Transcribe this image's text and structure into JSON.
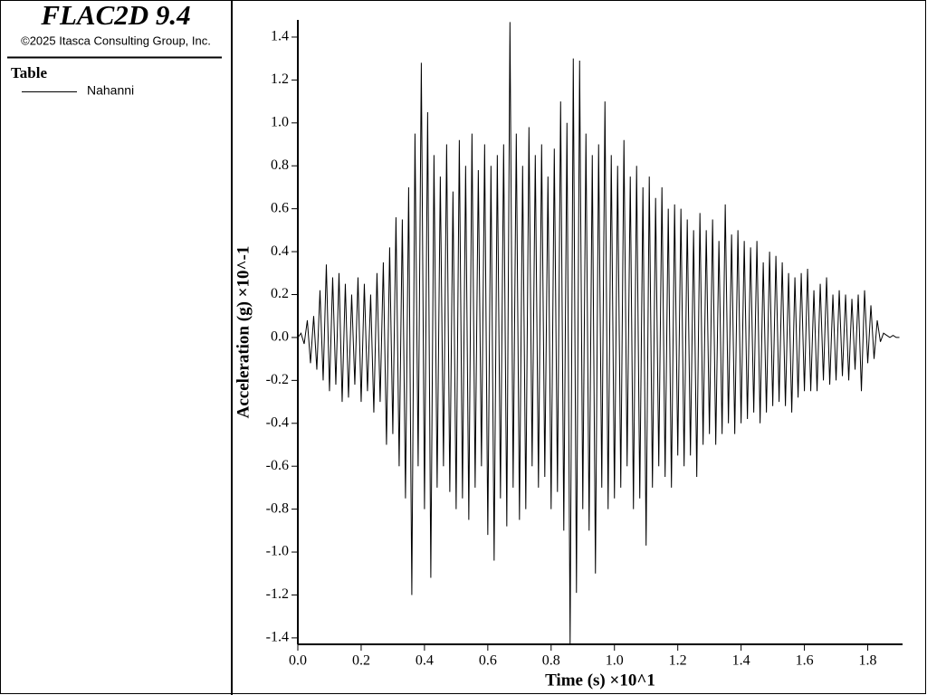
{
  "chart_data": {
    "type": "line",
    "title": "FLAC2D 9.4",
    "subtitle": "©2025 Itasca Consulting Group, Inc.",
    "legend_title": "Table",
    "x_label": "Time (s) ×10^1",
    "y_label": "Acceleration (g) ×10^-1",
    "xlim": [
      0,
      1.91
    ],
    "ylim": [
      -1.43,
      1.48
    ],
    "xticks": [
      {
        "value": 0,
        "label": "0.0"
      },
      0.2,
      0.4,
      0.6,
      0.8,
      {
        "value": 1,
        "label": "1.0"
      },
      1.2,
      1.4,
      1.6,
      1.8
    ],
    "yticks": [
      -1.4,
      -1.2,
      {
        "value": -1,
        "label": "-1.0"
      },
      -0.8,
      -0.6,
      -0.4,
      -0.2,
      {
        "value": 0,
        "label": "0.0"
      },
      0.2,
      0.4,
      0.6,
      0.8,
      {
        "value": 1,
        "label": "1.0"
      },
      1.2,
      1.4
    ],
    "x": [
      0,
      0.01,
      0.02,
      0.03,
      0.04,
      0.05,
      0.06,
      0.07,
      0.08,
      0.09,
      0.1,
      0.11,
      0.12,
      0.13,
      0.14,
      0.15,
      0.16,
      0.17,
      0.18,
      0.19,
      0.2,
      0.21,
      0.22,
      0.23,
      0.24,
      0.25,
      0.26,
      0.27,
      0.28,
      0.29,
      0.3,
      0.31,
      0.32,
      0.33,
      0.34,
      0.35,
      0.36,
      0.37,
      0.38,
      0.39,
      0.4,
      0.41,
      0.42,
      0.43,
      0.44,
      0.45,
      0.46,
      0.47,
      0.48,
      0.49,
      0.5,
      0.51,
      0.52,
      0.53,
      0.54,
      0.55,
      0.56,
      0.57,
      0.58,
      0.59,
      0.6,
      0.61,
      0.62,
      0.63,
      0.64,
      0.65,
      0.66,
      0.67,
      0.68,
      0.69,
      0.7,
      0.71,
      0.72,
      0.73,
      0.74,
      0.75,
      0.76,
      0.77,
      0.78,
      0.79,
      0.8,
      0.81,
      0.82,
      0.83,
      0.84,
      0.85,
      0.86,
      0.87,
      0.88,
      0.89,
      0.9,
      0.91,
      0.92,
      0.93,
      0.94,
      0.95,
      0.96,
      0.97,
      0.98,
      0.99,
      1,
      1.01,
      1.02,
      1.03,
      1.04,
      1.05,
      1.06,
      1.07,
      1.08,
      1.09,
      1.1,
      1.11,
      1.12,
      1.13,
      1.14,
      1.15,
      1.16,
      1.17,
      1.18,
      1.19,
      1.2,
      1.21,
      1.22,
      1.23,
      1.24,
      1.25,
      1.26,
      1.27,
      1.28,
      1.29,
      1.3,
      1.31,
      1.32,
      1.33,
      1.34,
      1.35,
      1.36,
      1.37,
      1.38,
      1.39,
      1.4,
      1.41,
      1.42,
      1.43,
      1.44,
      1.45,
      1.46,
      1.47,
      1.48,
      1.49,
      1.5,
      1.51,
      1.52,
      1.53,
      1.54,
      1.55,
      1.56,
      1.57,
      1.58,
      1.59,
      1.6,
      1.61,
      1.62,
      1.63,
      1.64,
      1.65,
      1.66,
      1.67,
      1.68,
      1.69,
      1.7,
      1.71,
      1.72,
      1.73,
      1.74,
      1.75,
      1.76,
      1.77,
      1.78,
      1.79,
      1.8,
      1.81,
      1.82,
      1.83,
      1.84,
      1.85,
      1.86,
      1.87,
      1.88,
      1.89,
      1.9
    ],
    "series": [
      {
        "name": "Nahanni",
        "color": "#000000",
        "values": [
          0,
          0.02,
          -0.03,
          0.08,
          -0.12,
          0.1,
          -0.15,
          0.22,
          -0.2,
          0.34,
          -0.25,
          0.28,
          -0.22,
          0.3,
          -0.3,
          0.25,
          -0.28,
          0.2,
          -0.22,
          0.28,
          -0.3,
          0.25,
          -0.25,
          0.2,
          -0.35,
          0.3,
          -0.3,
          0.35,
          -0.5,
          0.42,
          -0.45,
          0.56,
          -0.6,
          0.55,
          -0.75,
          0.7,
          -1.2,
          0.95,
          -0.6,
          1.28,
          -0.8,
          1.05,
          -1.12,
          0.85,
          -0.7,
          0.75,
          -0.6,
          0.9,
          -0.72,
          0.68,
          -0.8,
          0.92,
          -0.75,
          0.8,
          -0.85,
          0.95,
          -0.7,
          0.78,
          -0.6,
          0.9,
          -0.92,
          0.8,
          -1.04,
          0.85,
          -0.75,
          0.9,
          -0.88,
          1.47,
          -0.7,
          0.95,
          -0.85,
          0.8,
          -0.8,
          0.98,
          -0.6,
          0.85,
          -0.7,
          0.9,
          -0.65,
          0.75,
          -0.8,
          0.88,
          -0.72,
          1.1,
          -0.9,
          1,
          -1.43,
          1.3,
          -1.19,
          1.29,
          -0.8,
          0.95,
          -0.9,
          0.85,
          -1.1,
          0.9,
          -0.7,
          1.1,
          -0.8,
          0.85,
          -0.75,
          0.8,
          -0.7,
          0.92,
          -0.6,
          0.75,
          -0.8,
          0.8,
          -0.75,
          0.7,
          -0.97,
          0.75,
          -0.7,
          0.65,
          -0.6,
          0.7,
          -0.65,
          0.6,
          -0.7,
          0.62,
          -0.55,
          0.6,
          -0.6,
          0.55,
          -0.55,
          0.5,
          -0.65,
          0.58,
          -0.5,
          0.5,
          -0.45,
          0.55,
          -0.5,
          0.45,
          -0.45,
          0.62,
          -0.4,
          0.48,
          -0.45,
          0.5,
          -0.4,
          0.45,
          -0.38,
          0.42,
          -0.35,
          0.45,
          -0.4,
          0.35,
          -0.35,
          0.4,
          -0.32,
          0.38,
          -0.3,
          0.35,
          -0.32,
          0.3,
          -0.35,
          0.28,
          -0.28,
          0.3,
          -0.25,
          0.32,
          -0.25,
          0.22,
          -0.25,
          0.25,
          -0.2,
          0.28,
          -0.22,
          0.2,
          -0.2,
          0.22,
          -0.18,
          0.2,
          -0.2,
          0.18,
          -0.15,
          0.2,
          -0.25,
          0.22,
          -0.12,
          0.15,
          -0.1,
          0.08,
          -0.02,
          0.02,
          0.01,
          0,
          0.01,
          0,
          0
        ]
      }
    ]
  }
}
